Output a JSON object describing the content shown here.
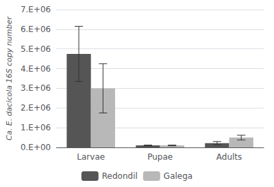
{
  "chart_data": {
    "type": "bar",
    "categories": [
      "Larvae",
      "Pupae",
      "Adults"
    ],
    "series": [
      {
        "name": "Redondil",
        "color": "#555555",
        "values": [
          4750000,
          100000,
          220000
        ],
        "errors": [
          1400000,
          20000,
          80000
        ]
      },
      {
        "name": "Galega",
        "color": "#b8b8b8",
        "values": [
          3000000,
          100000,
          500000
        ],
        "errors": [
          1250000,
          20000,
          120000
        ]
      }
    ],
    "ylabel": "Ca. E. dacicola 16S copy number",
    "ylim": [
      0,
      7000000
    ],
    "yticks": [
      {
        "value": 0,
        "label": "0.E+00"
      },
      {
        "value": 1000000,
        "label": "1.E+06"
      },
      {
        "value": 2000000,
        "label": "2.E+06"
      },
      {
        "value": 3000000,
        "label": "3.E+06"
      },
      {
        "value": 4000000,
        "label": "4.E+06"
      },
      {
        "value": 5000000,
        "label": "5.E+06"
      },
      {
        "value": 6000000,
        "label": "6.E+06"
      },
      {
        "value": 7000000,
        "label": "7.E+06"
      }
    ],
    "grid": true,
    "legend": "bottom"
  }
}
